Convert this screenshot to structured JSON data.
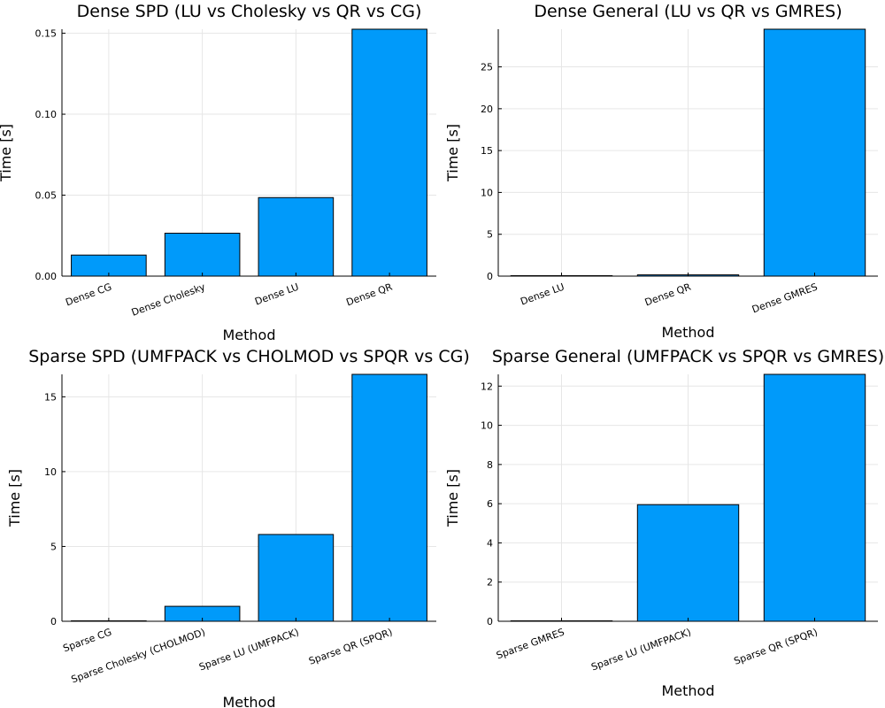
{
  "chart_data": [
    {
      "type": "bar",
      "title": "Dense SPD (LU vs Cholesky vs QR vs CG)",
      "xlabel": "Method",
      "ylabel": "Time [s]",
      "categories": [
        "Dense CG",
        "Dense Cholesky",
        "Dense LU",
        "Dense QR"
      ],
      "values": [
        0.013,
        0.0265,
        0.0485,
        0.1525
      ],
      "ylim": [
        0,
        0.1525
      ],
      "yticks": [
        0,
        0.05,
        0.1,
        0.15
      ],
      "ytick_labels": [
        "0.00",
        "0.05",
        "0.10",
        "0.15"
      ],
      "color": "#009AFA",
      "grid": true,
      "legend": "none"
    },
    {
      "type": "bar",
      "title": "Dense General (LU vs QR vs GMRES)",
      "xlabel": "Method",
      "ylabel": "Time [s]",
      "categories": [
        "Dense LU",
        "Dense QR",
        "Dense GMRES"
      ],
      "values": [
        0.05,
        0.15,
        29.5
      ],
      "ylim": [
        0,
        29.5
      ],
      "yticks": [
        0,
        5,
        10,
        15,
        20,
        25
      ],
      "ytick_labels": [
        "0",
        "5",
        "10",
        "15",
        "20",
        "25"
      ],
      "color": "#009AFA",
      "grid": true,
      "legend": "none"
    },
    {
      "type": "bar",
      "title": "Sparse SPD (UMFPACK vs CHOLMOD vs SPQR vs CG)",
      "xlabel": "Method",
      "ylabel": "Time [s]",
      "categories": [
        "Sparse CG",
        "Sparse Cholesky (CHOLMOD)",
        "Sparse LU (UMFPACK)",
        "Sparse QR (SPQR)"
      ],
      "values": [
        0.01,
        1.0,
        5.8,
        16.5
      ],
      "ylim": [
        0,
        16.5
      ],
      "yticks": [
        0,
        5,
        10,
        15
      ],
      "ytick_labels": [
        "0",
        "5",
        "10",
        "15"
      ],
      "color": "#009AFA",
      "grid": true,
      "legend": "none"
    },
    {
      "type": "bar",
      "title": "Sparse General (UMFPACK vs SPQR vs GMRES)",
      "xlabel": "Method",
      "ylabel": "Time [s]",
      "categories": [
        "Sparse GMRES",
        "Sparse LU (UMFPACK)",
        "Sparse QR (SPQR)"
      ],
      "values": [
        0.005,
        5.95,
        12.6
      ],
      "ylim": [
        0,
        12.6
      ],
      "yticks": [
        0,
        2,
        4,
        6,
        8,
        10,
        12
      ],
      "ytick_labels": [
        "0",
        "2",
        "4",
        "6",
        "8",
        "10",
        "12"
      ],
      "color": "#009AFA",
      "grid": true,
      "legend": "none"
    }
  ]
}
